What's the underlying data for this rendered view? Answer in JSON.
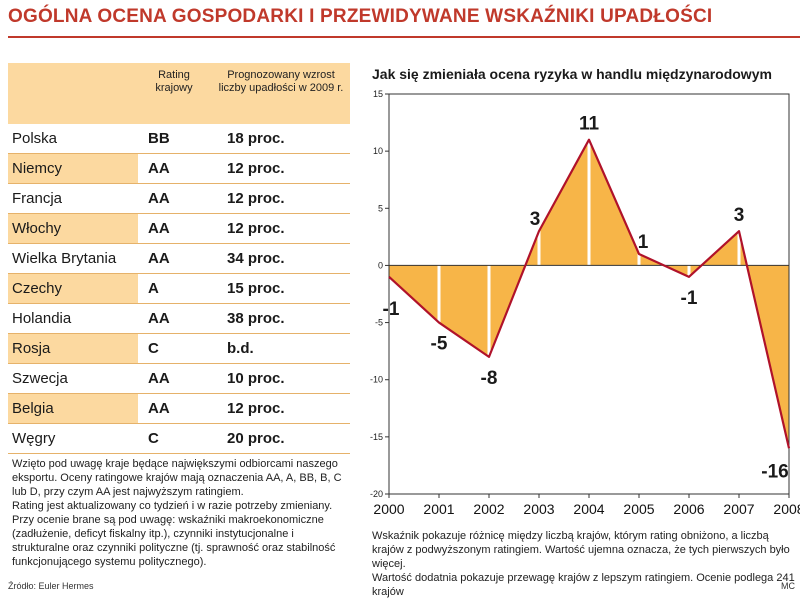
{
  "page": {
    "title": "OGÓLNA OCENA GOSPODARKI I PRZEWIDYWANE WSKAŹNIKI UPADŁOŚCI",
    "source": "Źródło: Euler Hermes",
    "author": "MC"
  },
  "table": {
    "headers": [
      "",
      "Rating krajowy",
      "Prognozowany wzrost liczby upadłości w 2009 r."
    ],
    "rows": [
      {
        "country": "Polska",
        "rating": "BB",
        "growth": "18 proc."
      },
      {
        "country": "Niemcy",
        "rating": "AA",
        "growth": "12 proc."
      },
      {
        "country": "Francja",
        "rating": "AA",
        "growth": "12 proc."
      },
      {
        "country": "Włochy",
        "rating": "AA",
        "growth": "12 proc."
      },
      {
        "country": "Wielka Brytania",
        "rating": "AA",
        "growth": "34 proc."
      },
      {
        "country": "Czechy",
        "rating": "A",
        "growth": "15 proc."
      },
      {
        "country": "Holandia",
        "rating": "AA",
        "growth": "38 proc."
      },
      {
        "country": "Rosja",
        "rating": "C",
        "growth": "b.d."
      },
      {
        "country": "Szwecja",
        "rating": "AA",
        "growth": "10 proc."
      },
      {
        "country": "Belgia",
        "rating": "AA",
        "growth": "12 proc."
      },
      {
        "country": "Węgry",
        "rating": "C",
        "growth": "20 proc."
      }
    ],
    "notes": [
      "Wzięto pod uwagę kraje będące największymi odbiorcami naszego eksportu. Oceny ratingowe krajów mają oznaczenia AA, A, BB, B, C lub D, przy czym AA jest najwyższym ratingiem.",
      "Rating jest aktualizowany co tydzień i w razie potrzeby zmieniany.",
      "Przy ocenie brane są pod uwagę: wskaźniki makroekonomiczne (zadłużenie, deficyt fiskalny itp.), czynniki instytucjonalne i strukturalne oraz czynniki polityczne (tj. sprawność oraz stabilność funkcjonującego systemu politycznego)."
    ]
  },
  "chart_data": {
    "type": "area",
    "title": "Jak się zmieniała ocena ryzyka w handlu międzynarodowym",
    "x": [
      "2000",
      "2001",
      "2002",
      "2003",
      "2004",
      "2005",
      "2006",
      "2007",
      "2008"
    ],
    "values": [
      -1,
      -5,
      -8,
      3,
      11,
      1,
      -1,
      3,
      -16
    ],
    "data_labels": [
      "-1",
      "-5",
      "-8",
      "3",
      "11",
      "1",
      "-1",
      "3",
      "-16"
    ],
    "y_ticks": [
      "15",
      "10",
      "5",
      "0",
      "-5",
      "-10",
      "-15",
      "-20"
    ],
    "ylim": [
      -20,
      15
    ],
    "grid": false,
    "colors": {
      "fill": "#f7b548",
      "line": "#b0122a"
    },
    "notes": [
      "Wskaźnik pokazuje różnicę między liczbą krajów, którym rating obniżono, a liczbą krajów z podwyższonym ratingiem. Wartość ujemna oznacza, że tych pierwszych było więcej.",
      "Wartość dodatnia pokazuje przewagę krajów z lepszym ratingiem. Ocenie podlega 241 krajów"
    ]
  }
}
